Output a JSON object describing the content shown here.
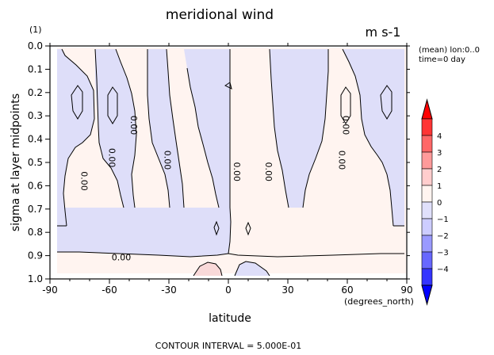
{
  "figure": {
    "title": "meridional wind",
    "units": "m s-1",
    "panel_label": "(1)",
    "info_line1": "(mean) lon:0..0",
    "info_line2": "time=0 day",
    "x_unit_note": "(degrees_north)",
    "footer": "CONTOUR INTERVAL = 5.000E-01"
  },
  "chart_data": {
    "type": "heatmap",
    "title": "meridional wind",
    "xlabel": "latitude",
    "ylabel": "sigma at layer midpoints",
    "xlim": [
      -90,
      90
    ],
    "ylim": [
      1.0,
      0.0
    ],
    "x_ticks": [
      -90,
      -60,
      -30,
      0,
      30,
      60,
      90
    ],
    "x_tick_labels": [
      "-90",
      "-60",
      "-30",
      "0",
      "30",
      "60",
      "90"
    ],
    "y_ticks": [
      0.0,
      0.1,
      0.2,
      0.3,
      0.4,
      0.5,
      0.6,
      0.7,
      0.8,
      0.9,
      1.0
    ],
    "y_tick_labels": [
      "0.0",
      "0.1",
      "0.2",
      "0.3",
      "0.4",
      "0.5",
      "0.6",
      "0.7",
      "0.8",
      "0.9",
      "1.0"
    ],
    "contour_interval": 0.5,
    "contour_labels": [
      {
        "text": "0.00",
        "lat": -73,
        "sigma": 0.58,
        "rot": 90
      },
      {
        "text": "0.00",
        "lat": -59,
        "sigma": 0.48,
        "rot": 90
      },
      {
        "text": "0.00",
        "lat": -48,
        "sigma": 0.34,
        "rot": 90
      },
      {
        "text": "0.00",
        "lat": -31,
        "sigma": 0.49,
        "rot": 90
      },
      {
        "text": "0.00",
        "lat": 4,
        "sigma": 0.54,
        "rot": 90
      },
      {
        "text": "0.00",
        "lat": 20,
        "sigma": 0.54,
        "rot": 90
      },
      {
        "text": "0.00",
        "lat": 57,
        "sigma": 0.49,
        "rot": 90
      },
      {
        "text": "0.00",
        "lat": 59,
        "sigma": 0.34,
        "rot": 90
      },
      {
        "text": "0.00",
        "lat": -54,
        "sigma": 0.91,
        "rot": 0
      }
    ],
    "colorbar": {
      "levels": [
        4,
        3,
        2,
        1,
        0,
        -1,
        -2,
        -3,
        -4
      ],
      "labels": [
        "4",
        "3",
        "2",
        "1",
        "0",
        "−1",
        "−2",
        "−3",
        "−4"
      ],
      "colors": [
        "#ff0000",
        "#ff3434",
        "#ff6767",
        "#ff9a9a",
        "#ffcdcd",
        "#fff4f0",
        "#e0e0fb",
        "#cdcdff",
        "#9a9aff",
        "#6767ff",
        "#3434ff",
        "#0000ff"
      ]
    },
    "fill_colors": {
      "positive": "#fff4f0",
      "negative": "#dedef9"
    }
  }
}
